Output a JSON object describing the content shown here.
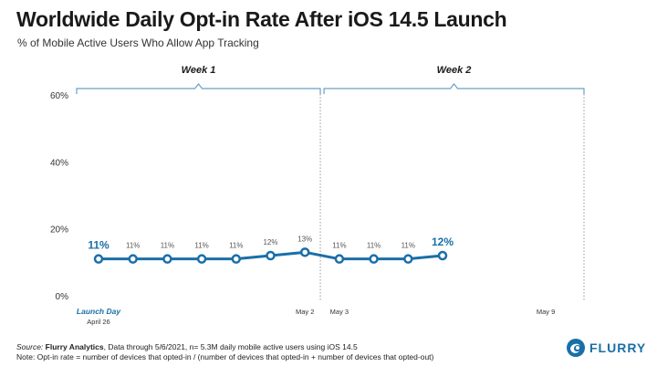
{
  "header": {
    "title": "Worldwide Daily Opt-in Rate After iOS 14.5 Launch",
    "subtitle": "% of Mobile Active Users Who Allow App Tracking"
  },
  "chart_data": {
    "type": "line",
    "title": "Worldwide Daily Opt-in Rate After iOS 14.5 Launch",
    "subtitle": "% of Mobile Active Users Who Allow App Tracking",
    "xlabel": "",
    "ylabel": "",
    "ylim": [
      0,
      60
    ],
    "y_ticks": [
      "0%",
      "20%",
      "40%",
      "60%"
    ],
    "x_tick_labels": [
      {
        "index": 0,
        "lines": [
          "Launch Day",
          "April 26"
        ]
      },
      {
        "index": 6,
        "lines": [
          "May 2"
        ]
      },
      {
        "index": 7,
        "lines": [
          "May 3"
        ]
      },
      {
        "index": 13,
        "lines": [
          "May 9"
        ]
      }
    ],
    "periods": [
      {
        "label": "Week 1",
        "start": 0,
        "end": 6
      },
      {
        "label": "Week 2",
        "start": 7,
        "end": 13
      }
    ],
    "series": [
      {
        "values": [
          11,
          11,
          11,
          11,
          11,
          12,
          13,
          11,
          11,
          11,
          12
        ],
        "data_labels": [
          "11%",
          "11%",
          "11%",
          "11%",
          "11%",
          "12%",
          "13%",
          "11%",
          "11%",
          "11%",
          "12%"
        ]
      }
    ],
    "grid": false,
    "colors": {
      "line": "#1a6fa8",
      "bracket": "#6b9fc8",
      "divider": "#999999"
    }
  },
  "footer": {
    "source_label": "Source:",
    "source_name": "Flurry Analytics",
    "source_rest": ", Data through 5/6/2021, n= 5.3M daily mobile active users using iOS 14.5",
    "note": "Note: Opt-in rate = number of devices that opted-in / (number of devices that opted-in + number of devices that opted-out)"
  },
  "logo": {
    "text": "FLURRY",
    "icon": "flurry-swirl-icon"
  }
}
